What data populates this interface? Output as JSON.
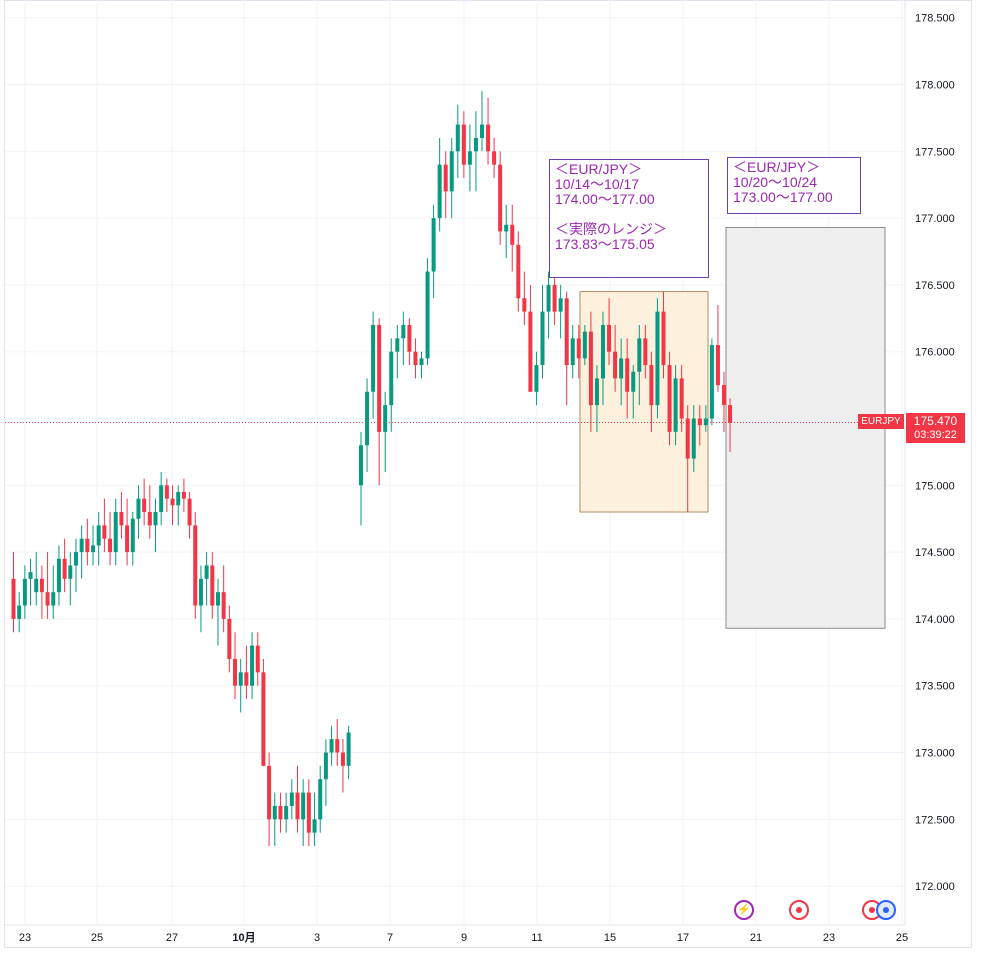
{
  "chart_data": {
    "type": "candlestick",
    "symbol": "EURJPY",
    "last_price": "175.470",
    "countdown": "03:39:22",
    "y_ticks": [
      "178.500",
      "178.000",
      "177.500",
      "177.000",
      "176.500",
      "176.000",
      "175.500",
      "175.000",
      "174.500",
      "174.000",
      "173.500",
      "173.000",
      "172.500",
      "172.000"
    ],
    "x_ticks": [
      "23",
      "25",
      "27",
      "10月",
      "3",
      "7",
      "9",
      "11",
      "15",
      "17",
      "21",
      "23",
      "25"
    ],
    "ylim": [
      171.6,
      178.6
    ],
    "grid": true,
    "colors": {
      "up": "#089981",
      "down": "#f23645",
      "range_box": "#fdf0dc",
      "forecast_box": "#efefef",
      "annotation": "#9c27b0"
    },
    "candles": [
      [
        174.3,
        174.5,
        173.9,
        174.0
      ],
      [
        174.0,
        174.2,
        173.9,
        174.1
      ],
      [
        174.1,
        174.4,
        174.0,
        174.3
      ],
      [
        174.3,
        174.45,
        174.1,
        174.35
      ],
      [
        174.2,
        174.5,
        174.1,
        174.3
      ],
      [
        174.3,
        174.4,
        174.0,
        174.2
      ],
      [
        174.2,
        174.5,
        174.0,
        174.1
      ],
      [
        174.1,
        174.4,
        174.0,
        174.2
      ],
      [
        174.2,
        174.55,
        174.1,
        174.45
      ],
      [
        174.45,
        174.6,
        174.2,
        174.3
      ],
      [
        174.3,
        174.5,
        174.1,
        174.4
      ],
      [
        174.4,
        174.6,
        174.2,
        174.5
      ],
      [
        174.5,
        174.7,
        174.3,
        174.6
      ],
      [
        174.6,
        174.75,
        174.4,
        174.5
      ],
      [
        174.5,
        174.7,
        174.4,
        174.55
      ],
      [
        174.55,
        174.8,
        174.4,
        174.7
      ],
      [
        174.7,
        174.9,
        174.5,
        174.6
      ],
      [
        174.6,
        174.8,
        174.4,
        174.5
      ],
      [
        174.5,
        174.9,
        174.4,
        174.8
      ],
      [
        174.8,
        174.95,
        174.6,
        174.7
      ],
      [
        174.7,
        174.9,
        174.4,
        174.5
      ],
      [
        174.5,
        174.8,
        174.4,
        174.75
      ],
      [
        174.75,
        175.0,
        174.6,
        174.9
      ],
      [
        174.9,
        175.05,
        174.7,
        174.8
      ],
      [
        174.8,
        175.0,
        174.6,
        174.7
      ],
      [
        174.7,
        174.9,
        174.5,
        174.8
      ],
      [
        174.8,
        175.1,
        174.7,
        175.0
      ],
      [
        175.0,
        175.05,
        174.8,
        174.9
      ],
      [
        174.9,
        175.0,
        174.7,
        174.85
      ],
      [
        174.85,
        175.0,
        174.7,
        174.95
      ],
      [
        174.95,
        175.05,
        174.8,
        174.9
      ],
      [
        174.9,
        174.95,
        174.6,
        174.7
      ],
      [
        174.7,
        174.8,
        174.0,
        174.1
      ],
      [
        174.1,
        174.4,
        173.9,
        174.3
      ],
      [
        174.3,
        174.5,
        174.1,
        174.4
      ],
      [
        174.4,
        174.5,
        174.0,
        174.1
      ],
      [
        174.1,
        174.3,
        173.8,
        174.2
      ],
      [
        174.2,
        174.4,
        173.9,
        174.0
      ],
      [
        174.0,
        174.1,
        173.6,
        173.7
      ],
      [
        173.7,
        173.9,
        173.4,
        173.5
      ],
      [
        173.5,
        173.7,
        173.3,
        173.6
      ],
      [
        173.6,
        173.8,
        173.4,
        173.5
      ],
      [
        173.5,
        173.9,
        173.4,
        173.8
      ],
      [
        173.8,
        173.9,
        173.5,
        173.6
      ],
      [
        173.6,
        173.7,
        172.9,
        172.9
      ],
      [
        172.9,
        173.0,
        172.3,
        172.5
      ],
      [
        172.5,
        172.7,
        172.3,
        172.6
      ],
      [
        172.6,
        172.7,
        172.4,
        172.5
      ],
      [
        172.5,
        172.7,
        172.4,
        172.6
      ],
      [
        172.6,
        172.8,
        172.5,
        172.7
      ],
      [
        172.7,
        172.9,
        172.4,
        172.5
      ],
      [
        172.5,
        172.8,
        172.3,
        172.7
      ],
      [
        172.7,
        172.8,
        172.3,
        172.4
      ],
      [
        172.4,
        172.7,
        172.3,
        172.5
      ],
      [
        172.5,
        172.9,
        172.4,
        172.8
      ],
      [
        172.8,
        173.1,
        172.6,
        173.0
      ],
      [
        173.0,
        173.2,
        172.9,
        173.1
      ],
      [
        173.1,
        173.25,
        172.9,
        173.0
      ],
      [
        173.0,
        173.1,
        172.7,
        172.9
      ],
      [
        172.9,
        173.2,
        172.8,
        173.15
      ],
      [
        175.0,
        175.4,
        174.7,
        175.3
      ],
      [
        175.3,
        175.8,
        175.1,
        175.7
      ],
      [
        175.7,
        176.3,
        175.5,
        176.2
      ],
      [
        176.2,
        176.25,
        175.0,
        175.4
      ],
      [
        175.4,
        175.7,
        175.1,
        175.6
      ],
      [
        175.6,
        176.1,
        175.4,
        176.0
      ],
      [
        176.0,
        176.2,
        175.8,
        176.1
      ],
      [
        176.1,
        176.3,
        175.9,
        176.2
      ],
      [
        176.2,
        176.25,
        175.9,
        176.0
      ],
      [
        176.0,
        176.1,
        175.8,
        175.9
      ],
      [
        175.9,
        176.0,
        175.8,
        175.95
      ],
      [
        175.95,
        176.7,
        175.9,
        176.6
      ],
      [
        176.6,
        177.1,
        176.4,
        177.0
      ],
      [
        177.0,
        177.6,
        176.9,
        177.4
      ],
      [
        177.4,
        177.5,
        177.0,
        177.2
      ],
      [
        177.2,
        177.6,
        177.0,
        177.5
      ],
      [
        177.5,
        177.85,
        177.3,
        177.7
      ],
      [
        177.7,
        177.8,
        177.3,
        177.4
      ],
      [
        177.4,
        177.7,
        177.2,
        177.5
      ],
      [
        177.5,
        177.8,
        177.2,
        177.6
      ],
      [
        177.6,
        177.95,
        177.5,
        177.7
      ],
      [
        177.7,
        177.9,
        177.4,
        177.5
      ],
      [
        177.5,
        177.6,
        177.3,
        177.4
      ],
      [
        177.4,
        177.5,
        176.8,
        176.9
      ],
      [
        176.9,
        177.1,
        176.7,
        176.95
      ],
      [
        176.95,
        177.1,
        176.6,
        176.8
      ],
      [
        176.8,
        176.9,
        176.3,
        176.4
      ],
      [
        176.4,
        176.6,
        176.2,
        176.3
      ],
      [
        176.3,
        176.5,
        175.7,
        175.7
      ],
      [
        175.7,
        176.0,
        175.6,
        175.9
      ],
      [
        175.9,
        176.5,
        175.8,
        176.3
      ],
      [
        176.3,
        176.6,
        176.1,
        176.5
      ],
      [
        176.5,
        176.55,
        176.2,
        176.3
      ],
      [
        176.3,
        176.5,
        176.1,
        176.4
      ],
      [
        176.4,
        176.45,
        175.6,
        175.9
      ],
      [
        175.9,
        176.2,
        175.8,
        176.1
      ],
      [
        176.1,
        176.2,
        175.8,
        175.95
      ],
      [
        175.95,
        176.2,
        175.9,
        176.15
      ],
      [
        176.15,
        176.3,
        175.4,
        175.6
      ],
      [
        175.6,
        175.9,
        175.4,
        175.8
      ],
      [
        175.8,
        176.3,
        175.6,
        176.2
      ],
      [
        176.2,
        176.4,
        175.9,
        176.0
      ],
      [
        176.0,
        176.2,
        175.7,
        175.8
      ],
      [
        175.8,
        176.1,
        175.6,
        175.95
      ],
      [
        175.95,
        176.1,
        175.5,
        175.7
      ],
      [
        175.7,
        175.9,
        175.5,
        175.85
      ],
      [
        175.85,
        176.2,
        175.6,
        176.1
      ],
      [
        176.1,
        176.2,
        175.8,
        175.9
      ],
      [
        175.9,
        176.0,
        175.4,
        175.6
      ],
      [
        175.6,
        176.4,
        175.5,
        176.3
      ],
      [
        176.3,
        176.45,
        175.8,
        175.9
      ],
      [
        175.9,
        176.0,
        175.3,
        175.4
      ],
      [
        175.4,
        175.9,
        175.3,
        175.8
      ],
      [
        175.8,
        175.9,
        175.4,
        175.5
      ],
      [
        175.5,
        175.6,
        174.8,
        175.2
      ],
      [
        175.2,
        175.6,
        175.1,
        175.5
      ],
      [
        175.5,
        175.6,
        175.3,
        175.45
      ],
      [
        175.45,
        175.6,
        175.4,
        175.5
      ],
      [
        175.5,
        176.1,
        175.45,
        176.05
      ],
      [
        176.05,
        176.35,
        175.7,
        175.75
      ],
      [
        175.75,
        175.85,
        175.4,
        175.6
      ],
      [
        175.6,
        175.65,
        175.25,
        175.47
      ]
    ],
    "range_box": {
      "x_start": 14,
      "x_end": 37,
      "ymin": 174.8,
      "ymax": 176.45
    },
    "forecast_box": {
      "x_start": 42,
      "x_end": 51,
      "ymin": 173.93,
      "ymax": 176.93
    },
    "annotations": [
      {
        "lines": [
          "＜EUR/JPY＞",
          "10/14〜10/17",
          "174.00〜177.00",
          "",
          "＜実際のレンジ＞",
          "173.83〜175.05"
        ]
      },
      {
        "lines": [
          "＜EUR/JPY＞",
          "10/20〜10/24",
          "173.00〜177.00"
        ]
      }
    ]
  }
}
